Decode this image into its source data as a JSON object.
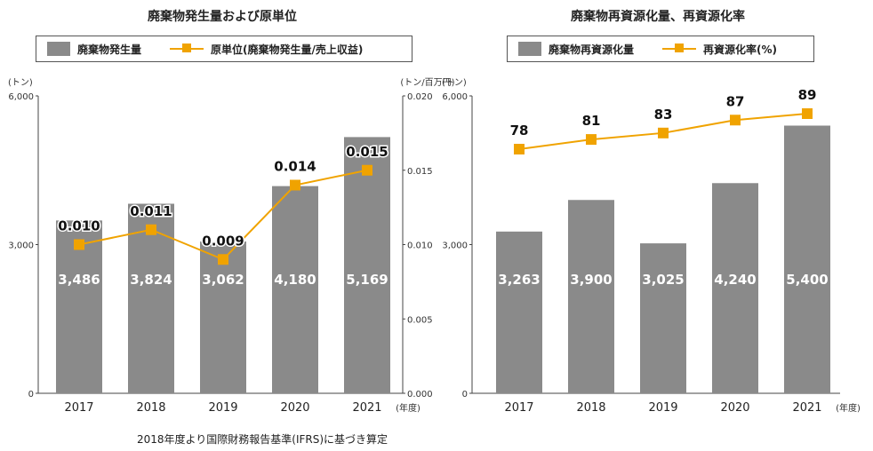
{
  "colors": {
    "bar": "#8a8a8a",
    "line": "#f0a300",
    "axis": "#444444"
  },
  "chart_data": [
    {
      "type": "bar+line",
      "title": "廃棄物発生量および原単位",
      "legend": [
        "廃棄物発生量",
        "原単位(廃棄物発生量/売上収益)"
      ],
      "left_unit": "(トン)",
      "right_unit": "(トン/百万円)",
      "x_unit": "(年度)",
      "categories": [
        "2017",
        "2018",
        "2019",
        "2020",
        "2021"
      ],
      "yticks_left": [
        "0",
        "3,000",
        "6,000"
      ],
      "yticks_right": [
        "0.000",
        "0.005",
        "0.010",
        "0.015",
        "0.020"
      ],
      "ylim_left": [
        0,
        6000
      ],
      "ylim_right": [
        0,
        0.02
      ],
      "series": [
        {
          "name": "廃棄物発生量",
          "kind": "bar",
          "axis": "left",
          "values": [
            3486,
            3824,
            3062,
            4180,
            5169
          ],
          "labels": [
            "3,486",
            "3,824",
            "3,062",
            "4,180",
            "5,169"
          ]
        },
        {
          "name": "原単位(廃棄物発生量/売上収益)",
          "kind": "line",
          "axis": "right",
          "values": [
            0.01,
            0.011,
            0.009,
            0.014,
            0.015
          ],
          "labels": [
            "0.010",
            "0.011",
            "0.009",
            "0.014",
            "0.015"
          ]
        }
      ],
      "note": "2018年度より国際財務報告基準(IFRS)に基づき算定"
    },
    {
      "type": "bar+line",
      "title": "廃棄物再資源化量、再資源化率",
      "legend": [
        "廃棄物再資源化量",
        "再資源化率(%)"
      ],
      "left_unit": "(トン)",
      "x_unit": "(年度)",
      "categories": [
        "2017",
        "2018",
        "2019",
        "2020",
        "2021"
      ],
      "yticks_left": [
        "0",
        "3,000",
        "6,000"
      ],
      "ylim_left": [
        0,
        6000
      ],
      "series": [
        {
          "name": "廃棄物再資源化量",
          "kind": "bar",
          "axis": "left",
          "values": [
            3263,
            3900,
            3025,
            4240,
            5400
          ],
          "labels": [
            "3,263",
            "3,900",
            "3,025",
            "4,240",
            "5,400"
          ]
        },
        {
          "name": "再資源化率(%)",
          "kind": "line",
          "axis": "hidden",
          "values": [
            78,
            81,
            83,
            87,
            89
          ],
          "labels": [
            "78",
            "81",
            "83",
            "87",
            "89"
          ]
        }
      ]
    }
  ]
}
